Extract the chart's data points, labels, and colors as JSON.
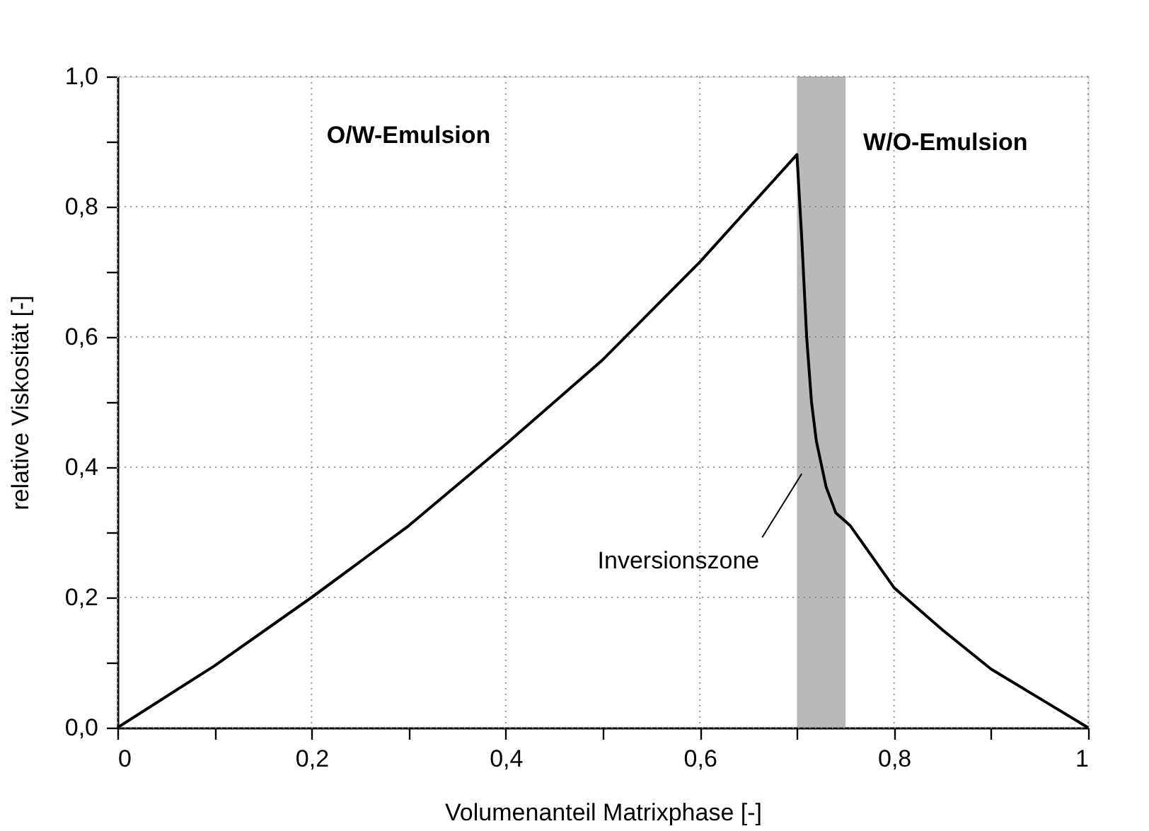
{
  "chart_data": {
    "type": "line",
    "xlabel": "Volumenanteil Matrixphase [-]",
    "ylabel": "relative Viskosität [-]",
    "series": [
      {
        "color": "#000000",
        "x": [
          0,
          0.1,
          0.2,
          0.3,
          0.4,
          0.5,
          0.6,
          0.7,
          0.705,
          0.71,
          0.715,
          0.72,
          0.73,
          0.74,
          0.755,
          0.8,
          0.85,
          0.9,
          0.95,
          1
        ],
        "values": [
          0,
          0.095,
          0.2,
          0.31,
          0.435,
          0.565,
          0.715,
          0.88,
          0.75,
          0.6,
          0.5,
          0.44,
          0.37,
          0.33,
          0.31,
          0.215,
          0.15,
          0.09,
          0.045,
          0
        ]
      }
    ],
    "xlim": [
      0,
      1
    ],
    "ylim": [
      0,
      1
    ],
    "xticks": [
      0,
      {
        "value": 0.1,
        "label": null
      },
      {
        "value": 0.2,
        "label": "0,2"
      },
      {
        "value": 0.3,
        "label": null
      },
      {
        "value": 0.4,
        "label": "0,4"
      },
      {
        "value": 0.5,
        "label": null
      },
      {
        "value": 0.6,
        "label": "0,6"
      },
      {
        "value": 0.7,
        "label": null
      },
      {
        "value": 0.8,
        "label": "0,8"
      },
      {
        "value": 0.9,
        "label": null
      },
      1
    ],
    "yticks": [
      {
        "value": 0,
        "label": "0,0"
      },
      {
        "value": 0.1,
        "label": null
      },
      {
        "value": 0.2,
        "label": "0,2"
      },
      {
        "value": 0.3,
        "label": null
      },
      {
        "value": 0.4,
        "label": "0,4"
      },
      {
        "value": 0.5,
        "label": null
      },
      {
        "value": 0.6,
        "label": "0,6"
      },
      {
        "value": 0.7,
        "label": null
      },
      {
        "value": 0.8,
        "label": "0,8"
      },
      {
        "value": 0.9,
        "label": null
      },
      {
        "value": 1,
        "label": "1,0"
      }
    ],
    "grid": true,
    "line_style": "solid",
    "marker": "none",
    "bands": [
      {
        "axis": "x",
        "from": 0.7,
        "to": 0.75,
        "color": "#808080"
      }
    ],
    "annotations": [
      "O/W-Emulsion",
      "W/O-Emulsion",
      {
        "text": "Inversionszone",
        "x": 0.705,
        "y": 0.39
      }
    ]
  }
}
